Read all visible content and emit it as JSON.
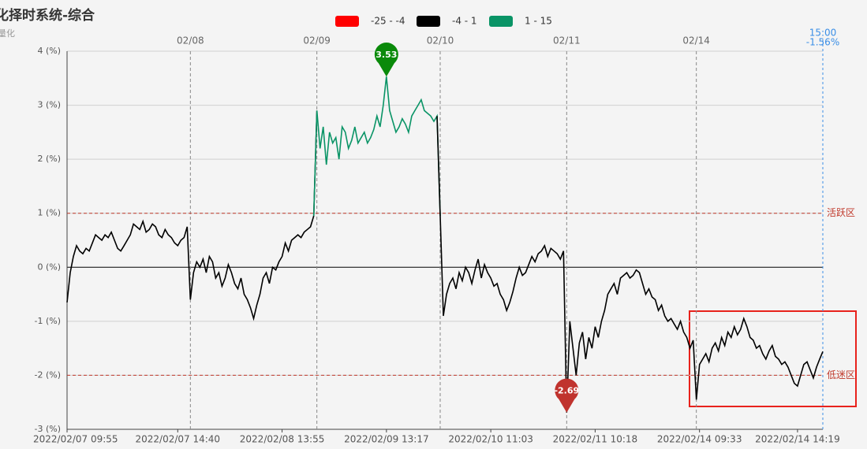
{
  "chart_data": {
    "type": "line",
    "title": "化择时系统-综合",
    "subtitle": "间量化",
    "ranges": [
      {
        "name": "-25 - -4",
        "min": -25,
        "max": -4,
        "color": "#ff0000"
      },
      {
        "name": "-4 - 1",
        "min": -4,
        "max": 1,
        "color": "#000000"
      },
      {
        "name": "1 - 15",
        "min": 1,
        "max": 15,
        "color": "#0a9466"
      }
    ],
    "values": [
      -0.65,
      -0.1,
      0.2,
      0.4,
      0.3,
      0.25,
      0.35,
      0.3,
      0.45,
      0.6,
      0.55,
      0.5,
      0.6,
      0.55,
      0.65,
      0.5,
      0.35,
      0.3,
      0.4,
      0.5,
      0.6,
      0.8,
      0.75,
      0.7,
      0.85,
      0.65,
      0.7,
      0.8,
      0.75,
      0.6,
      0.55,
      0.7,
      0.6,
      0.55,
      0.45,
      0.4,
      0.5,
      0.55,
      0.75,
      -0.6,
      -0.1,
      0.1,
      0,
      0.15,
      -0.1,
      0.2,
      0.1,
      -0.2,
      -0.1,
      -0.35,
      -0.2,
      0.05,
      -0.1,
      -0.3,
      -0.4,
      -0.2,
      -0.5,
      -0.6,
      -0.75,
      -0.95,
      -0.7,
      -0.5,
      -0.2,
      -0.1,
      -0.3,
      0,
      -0.05,
      0.1,
      0.2,
      0.45,
      0.3,
      0.5,
      0.55,
      0.6,
      0.55,
      0.65,
      0.7,
      0.75,
      0.95,
      2.9,
      2.2,
      2.6,
      1.9,
      2.5,
      2.3,
      2.4,
      2.0,
      2.6,
      2.5,
      2.2,
      2.35,
      2.6,
      2.3,
      2.4,
      2.5,
      2.3,
      2.4,
      2.55,
      2.8,
      2.6,
      3.0,
      3.53,
      2.9,
      2.7,
      2.5,
      2.6,
      2.75,
      2.65,
      2.5,
      2.8,
      2.9,
      3.0,
      3.1,
      2.9,
      2.85,
      2.8,
      2.7,
      2.8,
      0.95,
      -0.9,
      -0.5,
      -0.3,
      -0.2,
      -0.4,
      -0.1,
      -0.25,
      0,
      -0.1,
      -0.3,
      -0.05,
      0.15,
      -0.2,
      0.05,
      -0.1,
      -0.2,
      -0.35,
      -0.3,
      -0.5,
      -0.6,
      -0.8,
      -0.65,
      -0.45,
      -0.2,
      0,
      -0.15,
      -0.1,
      0.05,
      0.2,
      0.1,
      0.25,
      0.3,
      0.4,
      0.2,
      0.35,
      0.3,
      0.25,
      0.15,
      0.3,
      -2.69,
      -1.0,
      -1.5,
      -2.0,
      -1.4,
      -1.2,
      -1.7,
      -1.3,
      -1.5,
      -1.1,
      -1.3,
      -1.0,
      -0.8,
      -0.5,
      -0.4,
      -0.3,
      -0.5,
      -0.2,
      -0.15,
      -0.1,
      -0.2,
      -0.15,
      -0.05,
      -0.1,
      -0.3,
      -0.5,
      -0.4,
      -0.55,
      -0.6,
      -0.8,
      -0.7,
      -0.9,
      -1.0,
      -0.95,
      -1.05,
      -1.15,
      -1.0,
      -1.2,
      -1.3,
      -1.5,
      -1.35,
      -2.45,
      -1.8,
      -1.7,
      -1.6,
      -1.75,
      -1.5,
      -1.4,
      -1.55,
      -1.3,
      -1.45,
      -1.2,
      -1.3,
      -1.1,
      -1.25,
      -1.15,
      -0.95,
      -1.1,
      -1.3,
      -1.35,
      -1.5,
      -1.45,
      -1.6,
      -1.7,
      -1.55,
      -1.45,
      -1.65,
      -1.7,
      -1.8,
      -1.75,
      -1.85,
      -2.0,
      -2.15,
      -2.2,
      -2.0,
      -1.8,
      -1.75,
      -1.9,
      -2.05,
      -1.85,
      -1.7,
      -1.56
    ],
    "xlim": [
      0,
      239
    ],
    "xticks": [
      {
        "value": 0,
        "label": "2022/02/07 09:55"
      },
      {
        "value": 35,
        "label": "2022/02/07 14:40"
      },
      {
        "value": 68,
        "label": "2022/02/08 13:55"
      },
      {
        "value": 101,
        "label": "2022/02/09 13:17"
      },
      {
        "value": 134,
        "label": "2022/02/10 11:03"
      },
      {
        "value": 167,
        "label": "2022/02/11 10:18"
      },
      {
        "value": 200,
        "label": "2022/02/14 09:33"
      },
      {
        "value": 231,
        "label": "2022/02/14 14:19"
      }
    ],
    "day_dividers": [
      {
        "value": 39,
        "label": "02/08"
      },
      {
        "value": 79,
        "label": "02/09"
      },
      {
        "value": 118,
        "label": "02/10"
      },
      {
        "value": 158,
        "label": "02/11"
      },
      {
        "value": 199,
        "label": "02/14"
      }
    ],
    "ylim": [
      -3,
      4
    ],
    "yticks": [
      {
        "value": -3,
        "label": "-3 (%)"
      },
      {
        "value": -2,
        "label": "-2 (%)"
      },
      {
        "value": -1,
        "label": "-1 (%)"
      },
      {
        "value": 0,
        "label": "0 (%)"
      },
      {
        "value": 1,
        "label": "1 (%)"
      },
      {
        "value": 2,
        "label": "2 (%)"
      },
      {
        "value": 3,
        "label": "3 (%)"
      },
      {
        "value": 4,
        "label": "4 (%)"
      }
    ],
    "reference_lines": [
      {
        "value": 1,
        "label": "活跃区"
      },
      {
        "value": -2,
        "label": "低迷区"
      }
    ],
    "pins": [
      {
        "index": 101,
        "color": "#0a8a0a"
      },
      {
        "index": 158,
        "color": "#c0332e"
      }
    ],
    "cursor": {
      "index": 239,
      "time": "15:00",
      "value_label": "-1.56%"
    },
    "grid": true
  }
}
